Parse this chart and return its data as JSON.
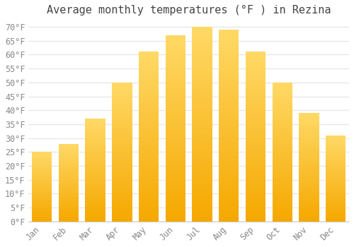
{
  "title": "Average monthly temperatures (°F ) in Rezina",
  "months": [
    "Jan",
    "Feb",
    "Mar",
    "Apr",
    "May",
    "Jun",
    "Jul",
    "Aug",
    "Sep",
    "Oct",
    "Nov",
    "Dec"
  ],
  "values": [
    25,
    28,
    37,
    50,
    61,
    67,
    70,
    69,
    61,
    50,
    39,
    31
  ],
  "bar_color_bottom": "#F5A800",
  "bar_color_top": "#FFD966",
  "ylim": [
    0,
    72
  ],
  "yticks": [
    0,
    5,
    10,
    15,
    20,
    25,
    30,
    35,
    40,
    45,
    50,
    55,
    60,
    65,
    70
  ],
  "background_color": "#FFFFFF",
  "grid_color": "#E8E8E8",
  "title_fontsize": 11,
  "tick_fontsize": 8.5,
  "font_family": "monospace",
  "tick_color": "#888888",
  "bar_width": 0.75
}
